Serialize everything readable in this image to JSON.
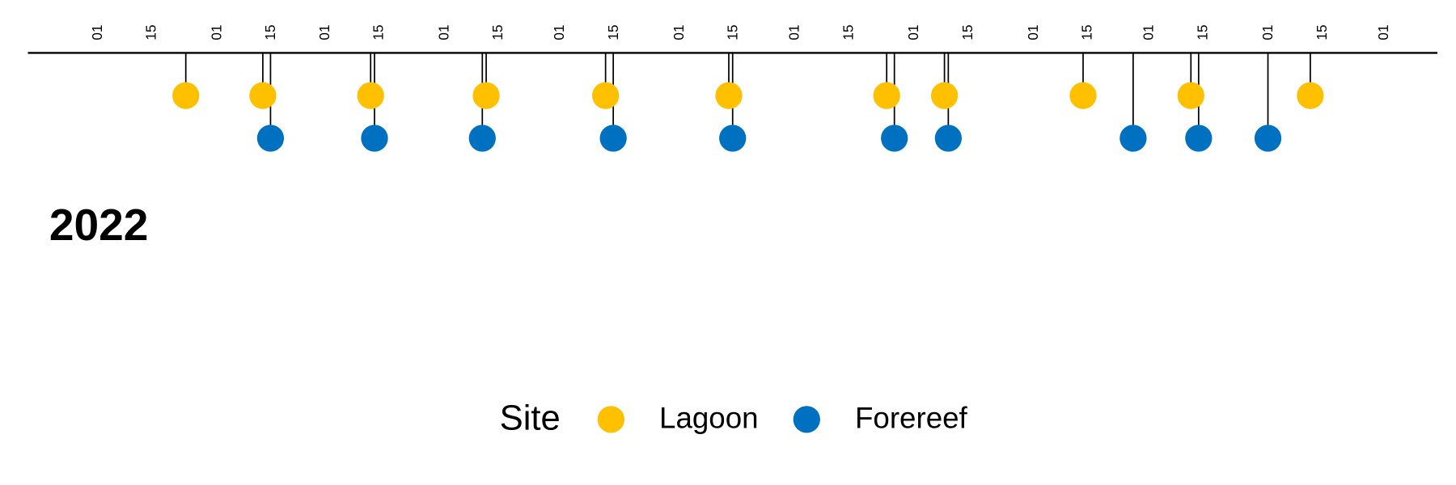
{
  "chart_data": {
    "type": "timeline",
    "title": "2022",
    "legend_title": "Site",
    "xlim": [
      -17,
      349
    ],
    "xticks": [
      {
        "value": 1,
        "label": "01"
      },
      {
        "value": 15,
        "label": "15"
      },
      {
        "value": 32,
        "label": "01"
      },
      {
        "value": 46,
        "label": "15"
      },
      {
        "value": 60,
        "label": "01"
      },
      {
        "value": 74,
        "label": "15"
      },
      {
        "value": 91,
        "label": "01"
      },
      {
        "value": 105,
        "label": "15"
      },
      {
        "value": 121,
        "label": "01"
      },
      {
        "value": 135,
        "label": "15"
      },
      {
        "value": 152,
        "label": "01"
      },
      {
        "value": 166,
        "label": "15"
      },
      {
        "value": 182,
        "label": "01"
      },
      {
        "value": 196,
        "label": "15"
      },
      {
        "value": 213,
        "label": "01"
      },
      {
        "value": 227,
        "label": "15"
      },
      {
        "value": 244,
        "label": "01"
      },
      {
        "value": 258,
        "label": "15"
      },
      {
        "value": 274,
        "label": "01"
      },
      {
        "value": 288,
        "label": "15"
      },
      {
        "value": 305,
        "label": "01"
      },
      {
        "value": 319,
        "label": "15"
      },
      {
        "value": 335,
        "label": "01"
      }
    ],
    "series": [
      {
        "name": "Lagoon",
        "color": "#FFC000",
        "x": [
          24,
          44,
          72,
          102,
          133,
          165,
          206,
          221,
          257,
          285,
          316
        ]
      },
      {
        "name": "Forereef",
        "color": "#0070C0",
        "x": [
          46,
          73,
          101,
          135,
          166,
          208,
          222,
          270,
          287,
          305
        ]
      }
    ]
  }
}
